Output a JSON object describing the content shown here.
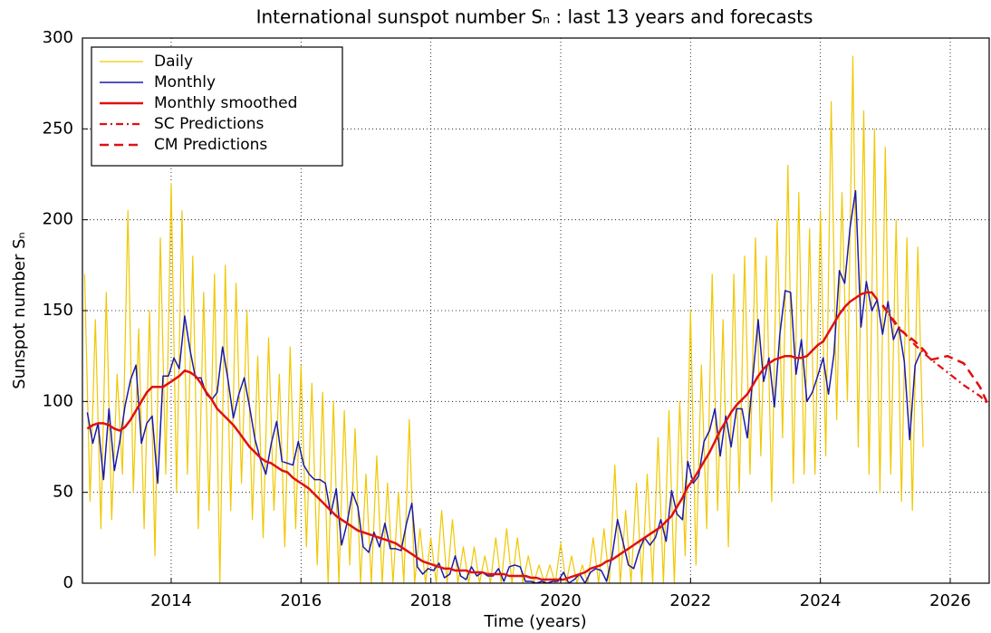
{
  "chart_data": {
    "type": "line",
    "title": "International sunspot number Sₙ : last 13 years and forecasts",
    "xlabel": "Time (years)",
    "ylabel": "Sunspot number Sₙ",
    "xlim": [
      2012.633,
      2026.6
    ],
    "ylim": [
      0,
      300
    ],
    "xticks": [
      2014,
      2016,
      2018,
      2020,
      2022,
      2024,
      2026
    ],
    "yticks": [
      0,
      50,
      100,
      150,
      200,
      250,
      300
    ],
    "grid": true,
    "legend": "upper left",
    "series": [
      {
        "name": "Daily",
        "color": "#f0c800",
        "width": 1.2,
        "linestyle": "-",
        "x": [
          2012.667,
          2012.75,
          2012.833,
          2012.917,
          2013,
          2013.083,
          2013.167,
          2013.25,
          2013.333,
          2013.417,
          2013.5,
          2013.583,
          2013.667,
          2013.75,
          2013.833,
          2013.917,
          2014,
          2014.083,
          2014.167,
          2014.25,
          2014.333,
          2014.417,
          2014.5,
          2014.583,
          2014.667,
          2014.75,
          2014.833,
          2014.917,
          2015,
          2015.083,
          2015.167,
          2015.25,
          2015.333,
          2015.417,
          2015.5,
          2015.583,
          2015.667,
          2015.75,
          2015.833,
          2015.917,
          2016,
          2016.083,
          2016.167,
          2016.25,
          2016.333,
          2016.417,
          2016.5,
          2016.583,
          2016.667,
          2016.75,
          2016.833,
          2016.917,
          2017,
          2017.083,
          2017.167,
          2017.25,
          2017.333,
          2017.417,
          2017.5,
          2017.583,
          2017.667,
          2017.75,
          2017.833,
          2017.917,
          2018,
          2018.083,
          2018.167,
          2018.25,
          2018.333,
          2018.417,
          2018.5,
          2018.583,
          2018.667,
          2018.75,
          2018.833,
          2018.917,
          2019,
          2019.083,
          2019.167,
          2019.25,
          2019.333,
          2019.417,
          2019.5,
          2019.583,
          2019.667,
          2019.75,
          2019.833,
          2019.917,
          2020,
          2020.083,
          2020.167,
          2020.25,
          2020.333,
          2020.417,
          2020.5,
          2020.583,
          2020.667,
          2020.75,
          2020.833,
          2020.917,
          2021,
          2021.083,
          2021.167,
          2021.25,
          2021.333,
          2021.417,
          2021.5,
          2021.583,
          2021.667,
          2021.75,
          2021.833,
          2021.917,
          2022,
          2022.083,
          2022.167,
          2022.25,
          2022.333,
          2022.417,
          2022.5,
          2022.583,
          2022.667,
          2022.75,
          2022.833,
          2022.917,
          2023,
          2023.083,
          2023.167,
          2023.25,
          2023.333,
          2023.417,
          2023.5,
          2023.583,
          2023.667,
          2023.75,
          2023.833,
          2023.917,
          2024,
          2024.083,
          2024.167,
          2024.25,
          2024.333,
          2024.417,
          2024.5,
          2024.583,
          2024.667,
          2024.75,
          2024.833,
          2024.917,
          2025,
          2025.083,
          2025.167,
          2025.25,
          2025.333,
          2025.417,
          2025.5,
          2025.583
        ],
        "values": [
          170,
          45,
          145,
          30,
          160,
          35,
          115,
          60,
          205,
          50,
          140,
          30,
          150,
          15,
          190,
          60,
          220,
          50,
          205,
          60,
          180,
          30,
          160,
          40,
          170,
          0,
          175,
          40,
          165,
          55,
          150,
          35,
          125,
          25,
          135,
          40,
          115,
          20,
          130,
          30,
          120,
          20,
          110,
          10,
          105,
          0,
          100,
          0,
          95,
          10,
          85,
          0,
          60,
          0,
          70,
          0,
          55,
          0,
          50,
          0,
          90,
          0,
          30,
          0,
          25,
          0,
          40,
          0,
          35,
          0,
          20,
          0,
          20,
          0,
          15,
          0,
          25,
          0,
          30,
          0,
          25,
          0,
          15,
          0,
          10,
          0,
          10,
          0,
          22,
          0,
          15,
          0,
          10,
          0,
          25,
          0,
          30,
          0,
          65,
          0,
          40,
          0,
          55,
          0,
          60,
          0,
          80,
          0,
          95,
          0,
          100,
          15,
          150,
          10,
          120,
          30,
          170,
          40,
          145,
          20,
          170,
          50,
          180,
          60,
          190,
          70,
          180,
          45,
          200,
          80,
          230,
          55,
          215,
          60,
          195,
          60,
          205,
          70,
          265,
          90,
          215,
          100,
          290,
          75,
          260,
          60,
          250,
          50,
          240,
          60,
          200,
          45,
          190,
          40,
          185,
          75
        ]
      },
      {
        "name": "Monthly",
        "color": "#1a1aa8",
        "width": 1.5,
        "linestyle": "-",
        "x": [
          2012.708,
          2012.792,
          2012.875,
          2012.958,
          2013.042,
          2013.125,
          2013.208,
          2013.292,
          2013.375,
          2013.458,
          2013.542,
          2013.625,
          2013.708,
          2013.792,
          2013.875,
          2013.958,
          2014.042,
          2014.125,
          2014.208,
          2014.292,
          2014.375,
          2014.458,
          2014.542,
          2014.625,
          2014.708,
          2014.792,
          2014.875,
          2014.958,
          2015.042,
          2015.125,
          2015.208,
          2015.292,
          2015.375,
          2015.458,
          2015.542,
          2015.625,
          2015.708,
          2015.792,
          2015.875,
          2015.958,
          2016.042,
          2016.125,
          2016.208,
          2016.292,
          2016.375,
          2016.458,
          2016.542,
          2016.625,
          2016.708,
          2016.792,
          2016.875,
          2016.958,
          2017.042,
          2017.125,
          2017.208,
          2017.292,
          2017.375,
          2017.458,
          2017.542,
          2017.625,
          2017.708,
          2017.792,
          2017.875,
          2017.958,
          2018.042,
          2018.125,
          2018.208,
          2018.292,
          2018.375,
          2018.458,
          2018.542,
          2018.625,
          2018.708,
          2018.792,
          2018.875,
          2018.958,
          2019.042,
          2019.125,
          2019.208,
          2019.292,
          2019.375,
          2019.458,
          2019.542,
          2019.625,
          2019.708,
          2019.792,
          2019.875,
          2019.958,
          2020.042,
          2020.125,
          2020.208,
          2020.292,
          2020.375,
          2020.458,
          2020.542,
          2020.625,
          2020.708,
          2020.792,
          2020.875,
          2020.958,
          2021.042,
          2021.125,
          2021.208,
          2021.292,
          2021.375,
          2021.458,
          2021.542,
          2021.625,
          2021.708,
          2021.792,
          2021.875,
          2021.958,
          2022.042,
          2022.125,
          2022.208,
          2022.292,
          2022.375,
          2022.458,
          2022.542,
          2022.625,
          2022.708,
          2022.792,
          2022.875,
          2022.958,
          2023.042,
          2023.125,
          2023.208,
          2023.292,
          2023.375,
          2023.458,
          2023.542,
          2023.625,
          2023.708,
          2023.792,
          2023.875,
          2023.958,
          2024.042,
          2024.125,
          2024.208,
          2024.292,
          2024.375,
          2024.458,
          2024.542,
          2024.625,
          2024.708,
          2024.792,
          2024.875,
          2024.958,
          2025.042,
          2025.125,
          2025.208,
          2025.292,
          2025.375,
          2025.458,
          2025.542
        ],
        "values": [
          94,
          77,
          88,
          57,
          96,
          62,
          78,
          98,
          112,
          120,
          77,
          88,
          92,
          55,
          114,
          114,
          124,
          118,
          147,
          128,
          113,
          113,
          104,
          101,
          105,
          130,
          112,
          91,
          104,
          113,
          97,
          79,
          68,
          60,
          77,
          89,
          67,
          66,
          65,
          78,
          65,
          60,
          57,
          57,
          55,
          38,
          52,
          21,
          33,
          50,
          42,
          20,
          17,
          28,
          20,
          33,
          19,
          19,
          18,
          33,
          44,
          9,
          5,
          8,
          7,
          11,
          3,
          5,
          15,
          4,
          2,
          9,
          4,
          6,
          4,
          4,
          8,
          1,
          9,
          10,
          9,
          1,
          1,
          0,
          1,
          0,
          1,
          1,
          6,
          0,
          2,
          5,
          0,
          6,
          8,
          7,
          1,
          15,
          35,
          23,
          10,
          8,
          18,
          25,
          21,
          25,
          35,
          23,
          51,
          38,
          35,
          67,
          55,
          59,
          78,
          84,
          96,
          70,
          92,
          75,
          96,
          96,
          80,
          113,
          145,
          111,
          124,
          97,
          137,
          161,
          160,
          115,
          134,
          100,
          105,
          114,
          124,
          104,
          126,
          172,
          165,
          196,
          216,
          141,
          166,
          150,
          156,
          137,
          155,
          134,
          141,
          122,
          79,
          120,
          127
        ]
      },
      {
        "name": "Monthly smoothed",
        "color": "#e01010",
        "width": 2.5,
        "linestyle": "-",
        "x": [
          2012.708,
          2012.792,
          2012.875,
          2012.958,
          2013.042,
          2013.125,
          2013.208,
          2013.292,
          2013.375,
          2013.458,
          2013.542,
          2013.625,
          2013.708,
          2013.792,
          2013.875,
          2013.958,
          2014.042,
          2014.125,
          2014.208,
          2014.292,
          2014.375,
          2014.458,
          2014.542,
          2014.625,
          2014.708,
          2014.792,
          2014.875,
          2014.958,
          2015.042,
          2015.125,
          2015.208,
          2015.292,
          2015.375,
          2015.458,
          2015.542,
          2015.625,
          2015.708,
          2015.792,
          2015.875,
          2015.958,
          2016.042,
          2016.125,
          2016.208,
          2016.292,
          2016.375,
          2016.458,
          2016.542,
          2016.625,
          2016.708,
          2016.792,
          2016.875,
          2016.958,
          2017.042,
          2017.125,
          2017.208,
          2017.292,
          2017.375,
          2017.458,
          2017.542,
          2017.625,
          2017.708,
          2017.792,
          2017.875,
          2017.958,
          2018.042,
          2018.125,
          2018.208,
          2018.292,
          2018.375,
          2018.458,
          2018.542,
          2018.625,
          2018.708,
          2018.792,
          2018.875,
          2018.958,
          2019.042,
          2019.125,
          2019.208,
          2019.292,
          2019.375,
          2019.458,
          2019.542,
          2019.625,
          2019.708,
          2019.792,
          2019.875,
          2019.958,
          2020.042,
          2020.125,
          2020.208,
          2020.292,
          2020.375,
          2020.458,
          2020.542,
          2020.625,
          2020.708,
          2020.792,
          2020.875,
          2020.958,
          2021.042,
          2021.125,
          2021.208,
          2021.292,
          2021.375,
          2021.458,
          2021.542,
          2021.625,
          2021.708,
          2021.792,
          2021.875,
          2021.958,
          2022.042,
          2022.125,
          2022.208,
          2022.292,
          2022.375,
          2022.458,
          2022.542,
          2022.625,
          2022.708,
          2022.792,
          2022.875,
          2022.958,
          2023.042,
          2023.125,
          2023.208,
          2023.292,
          2023.375,
          2023.458,
          2023.542,
          2023.625,
          2023.708,
          2023.792,
          2023.875,
          2023.958,
          2024.042,
          2024.125,
          2024.208,
          2024.292,
          2024.375,
          2024.458,
          2024.542,
          2024.625,
          2024.708,
          2024.792,
          2024.875
        ],
        "values": [
          85,
          87,
          88,
          88,
          87,
          85,
          84,
          86,
          90,
          95,
          100,
          105,
          108,
          108,
          108,
          110,
          112,
          114,
          117,
          116,
          114,
          110,
          105,
          101,
          96,
          93,
          90,
          87,
          83,
          79,
          75,
          72,
          69,
          67,
          66,
          64,
          62,
          61,
          58,
          56,
          54,
          52,
          49,
          46,
          43,
          40,
          37,
          35,
          33,
          31,
          29,
          28,
          27,
          26,
          25,
          24,
          23,
          22,
          20,
          18,
          16,
          14,
          12,
          11,
          10,
          9,
          8,
          8,
          7,
          7,
          7,
          6,
          6,
          6,
          5,
          5,
          5,
          5,
          4,
          4,
          4,
          4,
          3,
          3,
          2,
          2,
          2,
          2,
          2,
          3,
          4,
          5,
          6,
          8,
          9,
          10,
          12,
          13,
          15,
          17,
          19,
          21,
          23,
          25,
          27,
          29,
          31,
          34,
          37,
          42,
          47,
          53,
          57,
          62,
          67,
          72,
          78,
          84,
          89,
          94,
          98,
          101,
          104,
          109,
          114,
          118,
          121,
          123,
          124,
          125,
          125,
          124,
          124,
          125,
          128,
          131,
          133,
          138,
          143,
          148,
          152,
          155,
          157,
          159,
          160,
          160,
          156
        ]
      },
      {
        "name": "SC Predictions",
        "color": "#e01010",
        "width": 2.2,
        "linestyle": "-.",
        "x": [
          2024.958,
          2025.208,
          2025.458,
          2025.708,
          2025.958,
          2026.208,
          2026.458,
          2026.6
        ],
        "values": [
          153,
          141,
          131,
          123,
          116,
          109,
          103,
          98
        ]
      },
      {
        "name": "CM Predictions",
        "color": "#e01010",
        "width": 2.5,
        "linestyle": "--",
        "x": [
          2024.958,
          2025.208,
          2025.458,
          2025.6,
          2025.708,
          2025.958,
          2026.208,
          2026.458,
          2026.6
        ],
        "values": [
          153,
          140,
          133,
          128,
          123,
          125,
          121,
          108,
          97
        ]
      }
    ]
  }
}
